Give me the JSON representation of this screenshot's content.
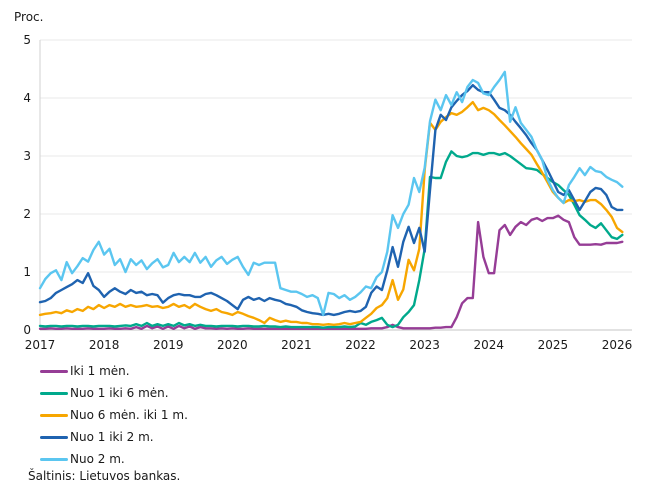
{
  "chart": {
    "y_axis_title": "Proc.",
    "source": "Šaltinis: Lietuvos bankas."
  },
  "chart_data": {
    "type": "line",
    "title": "",
    "ylabel": "Proc.",
    "xlabel": "",
    "ylim": [
      0,
      5
    ],
    "y_ticks": [
      0,
      1,
      2,
      3,
      4,
      5
    ],
    "x_ticks": [
      2017,
      2018,
      2019,
      2020,
      2021,
      2022,
      2023,
      2024,
      2025,
      2026
    ],
    "x_start": "2017-01",
    "x_step_months": 1,
    "grid": "horizontal",
    "legend_position": "bottom-left",
    "axis_color": "#c6c6c6",
    "grid_color": "#e9e9e9",
    "source": "Šaltinis: Lietuvos bankas.",
    "series": [
      {
        "name": "Iki 1 mėn.",
        "color": "#963d96",
        "values": [
          0.02,
          0.02,
          0.03,
          0.02,
          0.02,
          0.03,
          0.02,
          0.02,
          0.02,
          0.03,
          0.02,
          0.02,
          0.02,
          0.03,
          0.02,
          0.02,
          0.03,
          0.02,
          0.05,
          0.02,
          0.07,
          0.03,
          0.06,
          0.02,
          0.06,
          0.02,
          0.07,
          0.03,
          0.06,
          0.02,
          0.05,
          0.03,
          0.03,
          0.02,
          0.03,
          0.02,
          0.03,
          0.02,
          0.02,
          0.03,
          0.02,
          0.02,
          0.02,
          0.02,
          0.02,
          0.02,
          0.02,
          0.02,
          0.02,
          0.02,
          0.02,
          0.02,
          0.02,
          0.02,
          0.02,
          0.02,
          0.02,
          0.02,
          0.02,
          0.02,
          0.02,
          0.02,
          0.03,
          0.03,
          0.03,
          0.05,
          0.09,
          0.05,
          0.03,
          0.03,
          0.03,
          0.03,
          0.03,
          0.03,
          0.04,
          0.04,
          0.05,
          0.05,
          0.22,
          0.46,
          0.55,
          0.55,
          1.86,
          1.26,
          0.98,
          0.98,
          1.72,
          1.81,
          1.64,
          1.78,
          1.86,
          1.81,
          1.9,
          1.93,
          1.88,
          1.93,
          1.93,
          1.97,
          1.9,
          1.86,
          1.6,
          1.47,
          1.47,
          1.47,
          1.48,
          1.47,
          1.5,
          1.5,
          1.5,
          1.52
        ]
      },
      {
        "name": "Nuo 1 iki 6 mėn.",
        "color": "#00a98c",
        "values": [
          0.07,
          0.06,
          0.07,
          0.07,
          0.06,
          0.07,
          0.07,
          0.06,
          0.07,
          0.07,
          0.06,
          0.07,
          0.07,
          0.07,
          0.06,
          0.07,
          0.08,
          0.07,
          0.1,
          0.07,
          0.12,
          0.07,
          0.1,
          0.07,
          0.1,
          0.07,
          0.12,
          0.08,
          0.1,
          0.07,
          0.09,
          0.07,
          0.07,
          0.06,
          0.07,
          0.07,
          0.07,
          0.06,
          0.07,
          0.07,
          0.06,
          0.06,
          0.07,
          0.06,
          0.06,
          0.05,
          0.06,
          0.05,
          0.05,
          0.05,
          0.05,
          0.05,
          0.05,
          0.04,
          0.05,
          0.05,
          0.05,
          0.06,
          0.05,
          0.06,
          0.12,
          0.09,
          0.14,
          0.17,
          0.21,
          0.09,
          0.05,
          0.09,
          0.22,
          0.31,
          0.43,
          0.86,
          1.4,
          2.64,
          2.62,
          2.62,
          2.9,
          3.08,
          3.0,
          2.98,
          3.0,
          3.05,
          3.05,
          3.02,
          3.05,
          3.05,
          3.02,
          3.05,
          3.0,
          2.93,
          2.86,
          2.79,
          2.78,
          2.76,
          2.69,
          2.62,
          2.55,
          2.5,
          2.41,
          2.33,
          2.16,
          1.98,
          1.9,
          1.81,
          1.76,
          1.84,
          1.72,
          1.6,
          1.57,
          1.64
        ]
      },
      {
        "name": "Nuo 6 mėn. iki 1 m.",
        "color": "#f7a600",
        "values": [
          0.26,
          0.28,
          0.29,
          0.31,
          0.29,
          0.34,
          0.31,
          0.36,
          0.33,
          0.4,
          0.36,
          0.43,
          0.38,
          0.43,
          0.4,
          0.45,
          0.4,
          0.43,
          0.4,
          0.41,
          0.43,
          0.4,
          0.41,
          0.38,
          0.4,
          0.45,
          0.4,
          0.43,
          0.38,
          0.45,
          0.4,
          0.36,
          0.33,
          0.36,
          0.31,
          0.29,
          0.26,
          0.31,
          0.28,
          0.24,
          0.21,
          0.17,
          0.12,
          0.21,
          0.17,
          0.14,
          0.16,
          0.14,
          0.14,
          0.12,
          0.12,
          0.1,
          0.1,
          0.09,
          0.1,
          0.09,
          0.1,
          0.12,
          0.1,
          0.12,
          0.14,
          0.21,
          0.28,
          0.38,
          0.43,
          0.55,
          0.86,
          0.52,
          0.7,
          1.21,
          1.03,
          1.4,
          2.76,
          3.57,
          3.45,
          3.59,
          3.67,
          3.74,
          3.71,
          3.76,
          3.84,
          3.93,
          3.79,
          3.83,
          3.79,
          3.72,
          3.62,
          3.53,
          3.43,
          3.33,
          3.22,
          3.12,
          3.02,
          2.86,
          2.71,
          2.55,
          2.38,
          2.28,
          2.19,
          2.24,
          2.22,
          2.24,
          2.21,
          2.24,
          2.24,
          2.17,
          2.07,
          1.95,
          1.76,
          1.69
        ]
      },
      {
        "name": "Nuo 1 iki 2 m.",
        "color": "#1f63b0",
        "values": [
          0.48,
          0.5,
          0.55,
          0.64,
          0.69,
          0.74,
          0.79,
          0.86,
          0.81,
          0.98,
          0.76,
          0.69,
          0.57,
          0.66,
          0.72,
          0.66,
          0.62,
          0.69,
          0.64,
          0.66,
          0.6,
          0.62,
          0.6,
          0.47,
          0.55,
          0.6,
          0.62,
          0.6,
          0.6,
          0.57,
          0.57,
          0.62,
          0.64,
          0.6,
          0.55,
          0.5,
          0.43,
          0.36,
          0.52,
          0.57,
          0.52,
          0.55,
          0.5,
          0.55,
          0.52,
          0.5,
          0.45,
          0.43,
          0.4,
          0.34,
          0.31,
          0.29,
          0.28,
          0.26,
          0.28,
          0.26,
          0.28,
          0.31,
          0.33,
          0.31,
          0.33,
          0.4,
          0.64,
          0.75,
          0.69,
          1.03,
          1.43,
          1.09,
          1.52,
          1.78,
          1.5,
          1.76,
          1.35,
          2.41,
          3.45,
          3.71,
          3.62,
          3.84,
          3.95,
          4.05,
          4.12,
          4.22,
          4.14,
          4.1,
          4.1,
          3.97,
          3.83,
          3.79,
          3.71,
          3.59,
          3.48,
          3.36,
          3.22,
          3.1,
          2.93,
          2.76,
          2.57,
          2.38,
          2.33,
          2.41,
          2.24,
          2.07,
          2.22,
          2.38,
          2.45,
          2.43,
          2.33,
          2.12,
          2.07,
          2.07
        ]
      },
      {
        "name": "Nuo 2 m.",
        "color": "#5bc6f0",
        "values": [
          0.72,
          0.88,
          0.98,
          1.03,
          0.86,
          1.17,
          0.98,
          1.1,
          1.24,
          1.18,
          1.38,
          1.52,
          1.3,
          1.4,
          1.12,
          1.22,
          1.0,
          1.22,
          1.12,
          1.2,
          1.05,
          1.15,
          1.22,
          1.08,
          1.12,
          1.33,
          1.17,
          1.26,
          1.17,
          1.33,
          1.16,
          1.26,
          1.09,
          1.2,
          1.26,
          1.14,
          1.21,
          1.26,
          1.09,
          0.95,
          1.16,
          1.12,
          1.16,
          1.16,
          1.16,
          0.72,
          0.69,
          0.66,
          0.66,
          0.62,
          0.57,
          0.6,
          0.55,
          0.26,
          0.64,
          0.62,
          0.55,
          0.6,
          0.52,
          0.57,
          0.65,
          0.75,
          0.72,
          0.91,
          1.0,
          1.35,
          1.98,
          1.76,
          2.0,
          2.16,
          2.62,
          2.38,
          2.8,
          3.6,
          3.97,
          3.79,
          4.05,
          3.88,
          4.1,
          3.93,
          4.19,
          4.31,
          4.26,
          4.08,
          4.05,
          4.19,
          4.31,
          4.45,
          3.59,
          3.84,
          3.57,
          3.45,
          3.33,
          3.1,
          2.93,
          2.6,
          2.41,
          2.28,
          2.19,
          2.5,
          2.64,
          2.79,
          2.67,
          2.81,
          2.74,
          2.72,
          2.64,
          2.59,
          2.55,
          2.47
        ]
      }
    ]
  }
}
